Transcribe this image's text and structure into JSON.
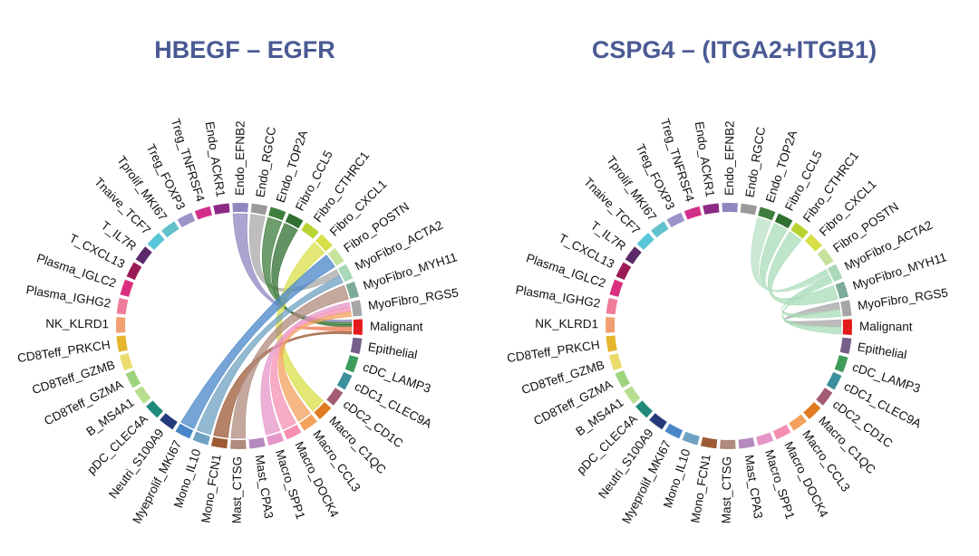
{
  "segments": [
    {
      "label": "Endo_EFNB2",
      "color": "#8d87c0"
    },
    {
      "label": "Endo_RGCC",
      "color": "#9a9a9a"
    },
    {
      "label": "Endo_TOP2A",
      "color": "#3d7e3e"
    },
    {
      "label": "Fibro_CCL5",
      "color": "#2f6f30"
    },
    {
      "label": "Fibro_CTHRC1",
      "color": "#b7d431"
    },
    {
      "label": "Fibro_CXCL1",
      "color": "#d8df47"
    },
    {
      "label": "Fibro_POSTN",
      "color": "#c6e29b"
    },
    {
      "label": "MyoFibro_ACTA2",
      "color": "#a8d8b8"
    },
    {
      "label": "MyoFibro_MYH11",
      "color": "#7eaa99"
    },
    {
      "label": "MyoFibro_RGS5",
      "color": "#a6a6a6"
    },
    {
      "label": "Malignant",
      "color": "#e41a1c"
    },
    {
      "label": "Epithelial",
      "color": "#76608a"
    },
    {
      "label": "cDC_LAMP3",
      "color": "#3f9c5c"
    },
    {
      "label": "cDC1_CLEC9A",
      "color": "#3c8f9c"
    },
    {
      "label": "cDC2_CD1C",
      "color": "#a35a74"
    },
    {
      "label": "Macro_C1QC",
      "color": "#e07b1f"
    },
    {
      "label": "Macro_CCL3",
      "color": "#f3a15c"
    },
    {
      "label": "Macro_DOCK4",
      "color": "#f48fb1"
    },
    {
      "label": "Macro_SPP1",
      "color": "#e596c8"
    },
    {
      "label": "Mast_CPA3",
      "color": "#b58abf"
    },
    {
      "label": "Mast_CTSG",
      "color": "#b08a7c"
    },
    {
      "label": "Mono_FCN1",
      "color": "#9c5a35"
    },
    {
      "label": "Mono_IL10",
      "color": "#6fa1c2"
    },
    {
      "label": "Myeprolif_MKI67",
      "color": "#4a86c8"
    },
    {
      "label": "Neutri_S100A9",
      "color": "#253a7a"
    },
    {
      "label": "pDC_CLEC4A",
      "color": "#1f8a7a"
    },
    {
      "label": "B_MS4A1",
      "color": "#b9dd8e"
    },
    {
      "label": "CD8Teff_GZMA",
      "color": "#9fd47e"
    },
    {
      "label": "CD8Teff_GZMB",
      "color": "#eadc6c"
    },
    {
      "label": "CD8Teff_PRKCH",
      "color": "#e5b52d"
    },
    {
      "label": "NK_KLRD1",
      "color": "#f0a070"
    },
    {
      "label": "Plasma_IGHG2",
      "color": "#ef7c9a"
    },
    {
      "label": "Plasma_IGLC2",
      "color": "#d92f7e"
    },
    {
      "label": "T_CXCL13",
      "color": "#9b1b57"
    },
    {
      "label": "T_IL7R",
      "color": "#5a2a6a"
    },
    {
      "label": "Tnaive_TCF7",
      "color": "#57c6d8"
    },
    {
      "label": "Tprolif_MKI67",
      "color": "#63c1cc"
    },
    {
      "label": "Treg_FOXP3",
      "color": "#9c94c8"
    },
    {
      "label": "Treg_TNFRSF4",
      "color": "#d22f8a"
    },
    {
      "label": "Endo_ACKR1",
      "color": "#8c2b86"
    }
  ],
  "panels": [
    {
      "title": "HBEGF – EGFR",
      "links": [
        {
          "from": "Endo_EFNB2",
          "to": "Malignant",
          "color": "#8d87c0"
        },
        {
          "from": "Endo_RGCC",
          "to": "MyoFibro_ACTA2",
          "color": "#a8a8a8"
        },
        {
          "from": "Endo_TOP2A",
          "to": "Malignant",
          "color": "#3d7e3e"
        },
        {
          "from": "Fibro_CCL5",
          "to": "Malignant",
          "color": "#2f6f30"
        },
        {
          "from": "Fibro_CXCL1",
          "to": "Macro_C1QC",
          "color": "#d8df47"
        },
        {
          "from": "Malignant",
          "to": "Malignant",
          "color": "#f07f5a"
        },
        {
          "from": "Myeprolif_MKI67",
          "to": "Fibro_POSTN",
          "color": "#4a86c8"
        },
        {
          "from": "Mono_IL10",
          "to": "MyoFibro_ACTA2",
          "color": "#6fa1c2"
        },
        {
          "from": "Mono_FCN1",
          "to": "Malignant",
          "color": "#9c5a35"
        },
        {
          "from": "Mast_CTSG",
          "to": "MyoFibro_MYH11",
          "color": "#b08a7c"
        },
        {
          "from": "Macro_SPP1",
          "to": "MyoFibro_RGS5",
          "color": "#e596c8"
        },
        {
          "from": "Macro_DOCK4",
          "to": "MyoFibro_RGS5",
          "color": "#f48fb1"
        },
        {
          "from": "Macro_CCL3",
          "to": "MyoFibro_RGS5",
          "color": "#f3a15c"
        }
      ]
    },
    {
      "title": "CSPG4 – (ITGA2+ITGB1)",
      "links": [
        {
          "from": "Fibro_CCL5",
          "to": "MyoFibro_ACTA2",
          "color": "#a8dcb8"
        },
        {
          "from": "Fibro_CTHRC1",
          "to": "MyoFibro_MYH11",
          "color": "#a8dcb8"
        },
        {
          "from": "Endo_TOP2A",
          "to": "MyoFibro_ACTA2",
          "color": "#b8e0c4"
        },
        {
          "from": "MyoFibro_RGS5",
          "to": "Malignant",
          "color": "#a6a6a6"
        },
        {
          "from": "MyoFibro_ACTA2",
          "to": "MyoFibro_RGS5",
          "color": "#a8dcb8"
        },
        {
          "from": "MyoFibro_ACTA2",
          "to": "Malignant",
          "color": "#a8dcb8"
        }
      ]
    }
  ]
}
